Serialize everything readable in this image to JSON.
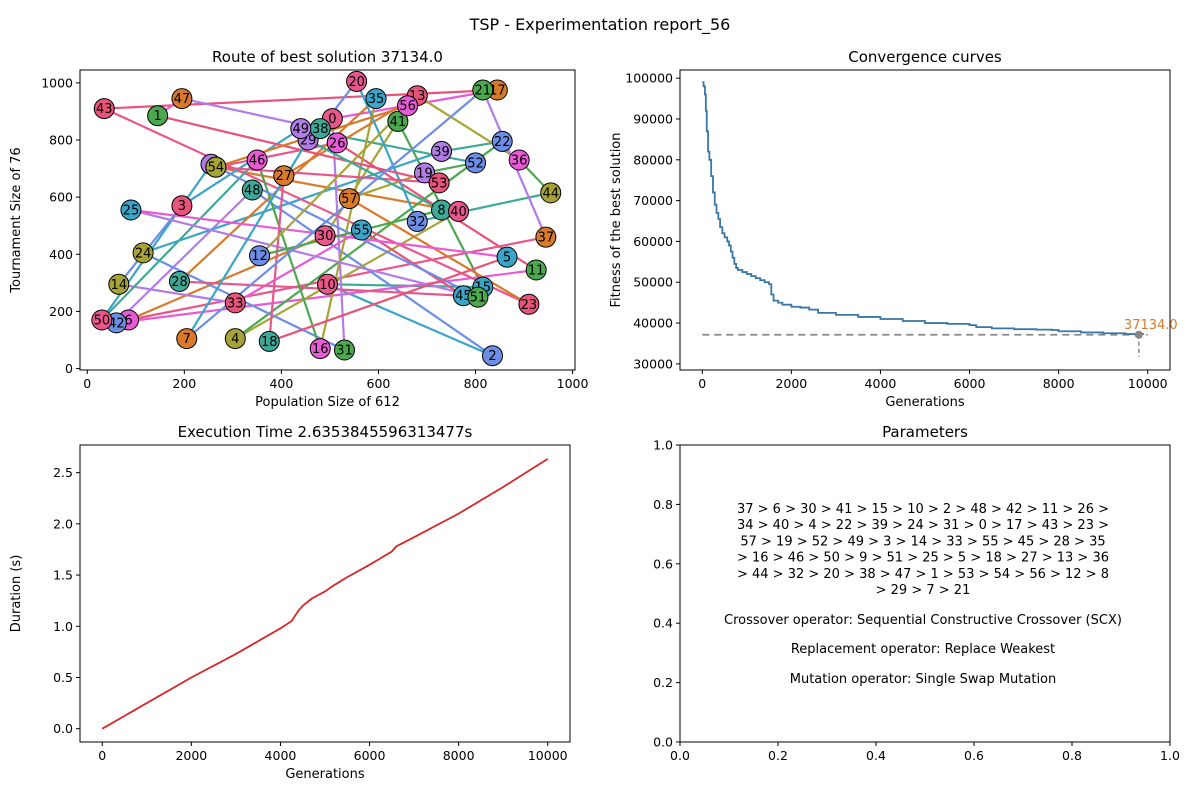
{
  "suptitle": "TSP - Experimentation report_56",
  "chart_data": [
    {
      "type": "scatter",
      "title": "Route of best solution 37134.0",
      "xlabel": "Population Size of 612",
      "ylabel": "Tournament Size of 76",
      "xlim": [
        -15,
        1005
      ],
      "ylim": [
        -5,
        1045
      ],
      "xticks": [
        0,
        200,
        400,
        600,
        800,
        1000
      ],
      "yticks": [
        0,
        200,
        400,
        600,
        800,
        1000
      ],
      "cities": [
        {
          "id": 0,
          "x": 505,
          "y": 875
        },
        {
          "id": 1,
          "x": 145,
          "y": 885
        },
        {
          "id": 2,
          "x": 835,
          "y": 45
        },
        {
          "id": 3,
          "x": 195,
          "y": 570
        },
        {
          "id": 4,
          "x": 305,
          "y": 105
        },
        {
          "id": 5,
          "x": 865,
          "y": 390
        },
        {
          "id": 6,
          "x": 85,
          "y": 170
        },
        {
          "id": 7,
          "x": 205,
          "y": 105
        },
        {
          "id": 8,
          "x": 730,
          "y": 555
        },
        {
          "id": 9,
          "x": 255,
          "y": 715
        },
        {
          "id": 10,
          "x": 495,
          "y": 295
        },
        {
          "id": 11,
          "x": 925,
          "y": 345
        },
        {
          "id": 12,
          "x": 355,
          "y": 395
        },
        {
          "id": 13,
          "x": 680,
          "y": 955
        },
        {
          "id": 14,
          "x": 65,
          "y": 295
        },
        {
          "id": 15,
          "x": 815,
          "y": 285
        },
        {
          "id": 16,
          "x": 480,
          "y": 70
        },
        {
          "id": 17,
          "x": 845,
          "y": 975
        },
        {
          "id": 18,
          "x": 375,
          "y": 95
        },
        {
          "id": 19,
          "x": 695,
          "y": 685
        },
        {
          "id": 20,
          "x": 555,
          "y": 1005
        },
        {
          "id": 21,
          "x": 815,
          "y": 975
        },
        {
          "id": 22,
          "x": 855,
          "y": 795
        },
        {
          "id": 23,
          "x": 910,
          "y": 225
        },
        {
          "id": 24,
          "x": 115,
          "y": 405
        },
        {
          "id": 25,
          "x": 90,
          "y": 555
        },
        {
          "id": 26,
          "x": 515,
          "y": 790
        },
        {
          "id": 27,
          "x": 405,
          "y": 675
        },
        {
          "id": 28,
          "x": 190,
          "y": 305
        },
        {
          "id": 29,
          "x": 455,
          "y": 800
        },
        {
          "id": 30,
          "x": 490,
          "y": 465
        },
        {
          "id": 31,
          "x": 530,
          "y": 65
        },
        {
          "id": 32,
          "x": 680,
          "y": 515
        },
        {
          "id": 33,
          "x": 305,
          "y": 230
        },
        {
          "id": 34,
          "x": 265,
          "y": 705
        },
        {
          "id": 35,
          "x": 595,
          "y": 945
        },
        {
          "id": 36,
          "x": 890,
          "y": 730
        },
        {
          "id": 37,
          "x": 945,
          "y": 460
        },
        {
          "id": 38,
          "x": 480,
          "y": 840
        },
        {
          "id": 39,
          "x": 730,
          "y": 760
        },
        {
          "id": 40,
          "x": 765,
          "y": 550
        },
        {
          "id": 41,
          "x": 640,
          "y": 865
        },
        {
          "id": 42,
          "x": 60,
          "y": 160
        },
        {
          "id": 43,
          "x": 35,
          "y": 910
        },
        {
          "id": 44,
          "x": 955,
          "y": 615
        },
        {
          "id": 45,
          "x": 775,
          "y": 255
        },
        {
          "id": 46,
          "x": 350,
          "y": 730
        },
        {
          "id": 47,
          "x": 195,
          "y": 945
        },
        {
          "id": 48,
          "x": 340,
          "y": 625
        },
        {
          "id": 49,
          "x": 440,
          "y": 840
        },
        {
          "id": 50,
          "x": 30,
          "y": 170
        },
        {
          "id": 51,
          "x": 805,
          "y": 250
        },
        {
          "id": 52,
          "x": 800,
          "y": 720
        },
        {
          "id": 53,
          "x": 725,
          "y": 650
        },
        {
          "id": 54,
          "x": 265,
          "y": 705
        },
        {
          "id": 55,
          "x": 565,
          "y": 485
        },
        {
          "id": 56,
          "x": 660,
          "y": 920
        },
        {
          "id": 57,
          "x": 540,
          "y": 595
        }
      ],
      "route": [
        37,
        6,
        30,
        41,
        15,
        10,
        2,
        48,
        42,
        11,
        26,
        34,
        40,
        4,
        22,
        39,
        24,
        31,
        0,
        17,
        43,
        23,
        57,
        19,
        52,
        49,
        3,
        14,
        33,
        55,
        45,
        28,
        35,
        16,
        46,
        50,
        9,
        51,
        25,
        5,
        18,
        27,
        13,
        36,
        44,
        32,
        20,
        38,
        47,
        1,
        53,
        54,
        56,
        12,
        8,
        29,
        7,
        21,
        37
      ]
    },
    {
      "type": "line",
      "title": "Convergence curves",
      "xlabel": "Generations",
      "ylabel": "Fitness of the best solution",
      "xlim": [
        -500,
        10500
      ],
      "ylim": [
        28500,
        102000
      ],
      "xticks": [
        0,
        2000,
        4000,
        6000,
        8000,
        10000
      ],
      "yticks": [
        30000,
        40000,
        50000,
        60000,
        70000,
        80000,
        90000,
        100000
      ],
      "series": [
        {
          "color": "#3a76a6",
          "x": [
            0,
            30,
            60,
            80,
            100,
            130,
            160,
            200,
            240,
            280,
            320,
            360,
            400,
            450,
            500,
            560,
            600,
            640,
            680,
            720,
            760,
            800,
            900,
            1000,
            1100,
            1200,
            1300,
            1400,
            1500,
            1550,
            1600,
            1700,
            1800,
            2000,
            2200,
            2400,
            2600,
            3000,
            3500,
            4000,
            4500,
            5000,
            5500,
            6000,
            6150,
            6500,
            7000,
            7500,
            7850,
            8000,
            8500,
            9000,
            9500,
            9900
          ],
          "y": [
            99000,
            98000,
            96000,
            92000,
            87000,
            82000,
            80000,
            76000,
            72000,
            69000,
            67000,
            65500,
            63500,
            62000,
            61000,
            60000,
            59000,
            57500,
            56000,
            54500,
            53500,
            53000,
            52500,
            52000,
            51500,
            51000,
            50500,
            50000,
            49500,
            47000,
            45500,
            45000,
            44500,
            44000,
            43800,
            43300,
            42500,
            42000,
            41500,
            41000,
            40500,
            40000,
            39800,
            39500,
            39000,
            38700,
            38500,
            38400,
            38300,
            38000,
            37700,
            37500,
            37300,
            37134
          ]
        }
      ],
      "best_value_label": "37134.0",
      "best_generation": 9800,
      "best_value": 37134,
      "annotation_color": "#d97a2b",
      "reference_line_color": "#888888"
    },
    {
      "type": "line",
      "title": "Execution Time 2.6353845596313477s",
      "xlabel": "Generations",
      "ylabel": "Duration (s)",
      "xlim": [
        -500,
        10500
      ],
      "ylim": [
        -0.13,
        2.77
      ],
      "xticks": [
        0,
        2000,
        4000,
        6000,
        8000,
        10000
      ],
      "yticks": [
        0.0,
        0.5,
        1.0,
        1.5,
        2.0,
        2.5
      ],
      "ytick_labels": [
        "0.0",
        "0.5",
        "1.0",
        "1.5",
        "2.0",
        "2.5"
      ],
      "series": [
        {
          "color": "#d62728",
          "x": [
            0,
            1000,
            2000,
            3000,
            4000,
            4250,
            4400,
            4500,
            4700,
            5000,
            5200,
            5500,
            6000,
            6500,
            6600,
            7000,
            8000,
            9000,
            10000
          ],
          "y": [
            0.0,
            0.25,
            0.5,
            0.73,
            0.98,
            1.05,
            1.15,
            1.2,
            1.27,
            1.34,
            1.4,
            1.48,
            1.6,
            1.73,
            1.78,
            1.87,
            2.1,
            2.36,
            2.635
          ]
        }
      ]
    },
    {
      "type": "table",
      "title": "Parameters",
      "xlim": [
        0,
        1
      ],
      "ylim": [
        0,
        1
      ],
      "xticks": [
        0.0,
        0.2,
        0.4,
        0.6,
        0.8,
        1.0
      ],
      "yticks": [
        0.0,
        0.2,
        0.4,
        0.6,
        0.8,
        1.0
      ],
      "tick_labels": [
        "0.0",
        "0.2",
        "0.4",
        "0.6",
        "0.8",
        "1.0"
      ],
      "route_lines": [
        "37 > 6 > 30 > 41 > 15 > 10 > 2 > 48 > 42 > 11 > 26 >",
        "34 > 40 > 4 > 22 > 39 > 24 > 31 > 0 > 17 > 43 > 23 >",
        "57 > 19 > 52 > 49 > 3 > 14 > 33 > 55 > 45 > 28 > 35",
        "> 16 > 46 > 50 > 9 > 51 > 25 > 5 > 18 > 27 > 13 > 36",
        "> 44 > 32 > 20 > 38 > 47 > 1 > 53 > 54 > 56 > 12 > 8",
        "> 29 > 7 > 21"
      ],
      "crossover": "Crossover operator: Sequential Constructive Crossover (SCX)",
      "replacement": "Replacement operator: Replace Weakest",
      "mutation": "Mutation operator: Single Swap Mutation"
    }
  ]
}
